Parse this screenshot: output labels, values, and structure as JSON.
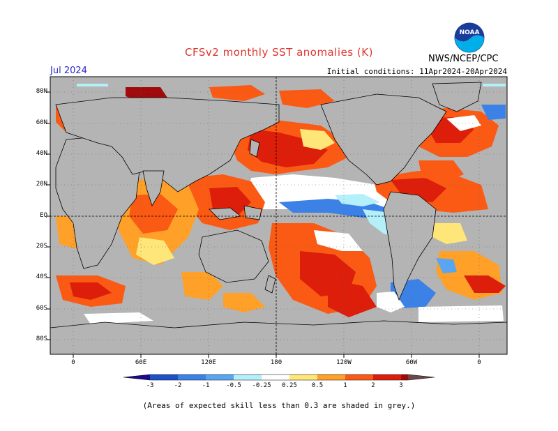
{
  "header": {
    "title": "CFSv2 monthly SST anomalies (K)",
    "agency": "NWS/NCEP/CPC",
    "month": "Jul 2024",
    "initial_conditions": "Initial conditions: 11Apr2024-20Apr2024",
    "logo_text": "NOAA",
    "logo_icon": "noaa-logo-icon"
  },
  "map": {
    "x_ticks": [
      "0",
      "60E",
      "120E",
      "180",
      "120W",
      "60W",
      "0"
    ],
    "y_ticks": [
      "80N",
      "60N",
      "40N",
      "20N",
      "EQ",
      "20S",
      "40S",
      "60S",
      "80S"
    ],
    "colors": {
      "land": "#c0c0c0",
      "ocean_neutral": "#ffffff",
      "skill_mask": "#b4b4b4"
    }
  },
  "colorbar": {
    "labels": [
      "-3",
      "-2",
      "-1",
      "-0.5",
      "-0.25",
      "0.25",
      "0.5",
      "1",
      "2",
      "3"
    ],
    "colors": [
      "#1b0a8c",
      "#1e50c8",
      "#3c82e6",
      "#5aa5f0",
      "#b4f0fa",
      "#ffffff",
      "#ffe678",
      "#ffa028",
      "#fa5a14",
      "#dc1e0a",
      "#a00a0a",
      "#6e4646"
    ]
  },
  "footnote": "(Areas of expected skill less than 0.3 are shaded in grey.)"
}
